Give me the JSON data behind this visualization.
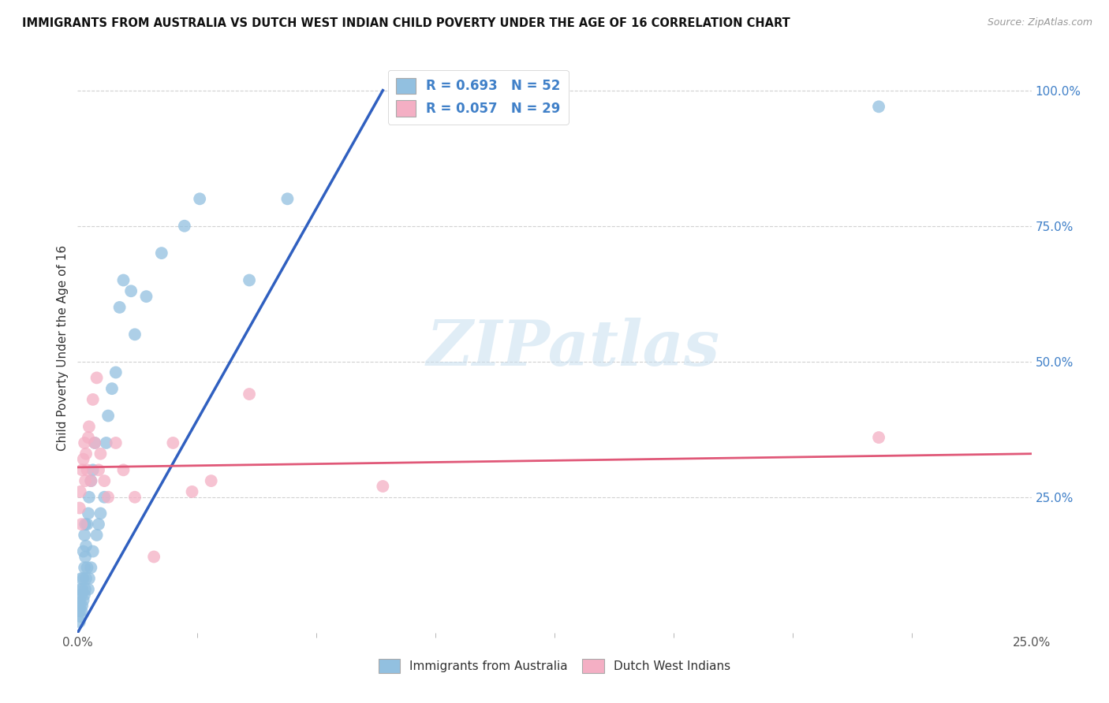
{
  "title": "IMMIGRANTS FROM AUSTRALIA VS DUTCH WEST INDIAN CHILD POVERTY UNDER THE AGE OF 16 CORRELATION CHART",
  "source": "Source: ZipAtlas.com",
  "ylabel": "Child Poverty Under the Age of 16",
  "watermark_text": "ZIPatlas",
  "legend_label_blue": "Immigrants from Australia",
  "legend_label_pink": "Dutch West Indians",
  "legend_r_blue": "R = 0.693   N = 52",
  "legend_r_pink": "R = 0.057   N = 29",
  "blue_scatter_color": "#92c0e0",
  "pink_scatter_color": "#f4afc4",
  "line_blue_color": "#3060c0",
  "line_pink_color": "#e05878",
  "background_color": "#ffffff",
  "grid_color": "#cccccc",
  "xlim": [
    0.0,
    25.0
  ],
  "ylim": [
    0.0,
    105.0
  ],
  "xticks": [
    0.0,
    25.0
  ],
  "yticks_right": [
    25.0,
    50.0,
    75.0,
    100.0
  ],
  "ytick_labels_right": [
    "25.0%",
    "50.0%",
    "75.0%",
    "100.0%"
  ],
  "blue_points_x": [
    0.05,
    0.05,
    0.05,
    0.07,
    0.07,
    0.07,
    0.1,
    0.1,
    0.1,
    0.12,
    0.12,
    0.15,
    0.15,
    0.15,
    0.18,
    0.18,
    0.18,
    0.2,
    0.2,
    0.2,
    0.22,
    0.22,
    0.25,
    0.25,
    0.28,
    0.28,
    0.3,
    0.3,
    0.35,
    0.35,
    0.4,
    0.4,
    0.45,
    0.5,
    0.55,
    0.6,
    0.7,
    0.75,
    0.8,
    0.9,
    1.0,
    1.1,
    1.2,
    1.4,
    1.5,
    1.8,
    2.2,
    2.8,
    3.2,
    4.5,
    5.5,
    21.0
  ],
  "blue_points_y": [
    2.0,
    4.0,
    6.0,
    3.0,
    5.0,
    8.0,
    4.0,
    7.0,
    10.0,
    5.0,
    8.0,
    6.0,
    10.0,
    15.0,
    7.0,
    12.0,
    18.0,
    8.0,
    14.0,
    20.0,
    10.0,
    16.0,
    12.0,
    20.0,
    8.0,
    22.0,
    10.0,
    25.0,
    12.0,
    28.0,
    15.0,
    30.0,
    35.0,
    18.0,
    20.0,
    22.0,
    25.0,
    35.0,
    40.0,
    45.0,
    48.0,
    60.0,
    65.0,
    63.0,
    55.0,
    62.0,
    70.0,
    75.0,
    80.0,
    65.0,
    80.0,
    97.0
  ],
  "pink_points_x": [
    0.05,
    0.07,
    0.1,
    0.12,
    0.15,
    0.18,
    0.2,
    0.22,
    0.25,
    0.28,
    0.3,
    0.35,
    0.4,
    0.45,
    0.5,
    0.55,
    0.6,
    0.7,
    0.8,
    1.0,
    1.2,
    1.5,
    2.0,
    2.5,
    3.0,
    3.5,
    4.5,
    8.0,
    21.0
  ],
  "pink_points_y": [
    23.0,
    26.0,
    20.0,
    30.0,
    32.0,
    35.0,
    28.0,
    33.0,
    30.0,
    36.0,
    38.0,
    28.0,
    43.0,
    35.0,
    47.0,
    30.0,
    33.0,
    28.0,
    25.0,
    35.0,
    30.0,
    25.0,
    14.0,
    35.0,
    26.0,
    28.0,
    44.0,
    27.0,
    36.0
  ],
  "blue_line_x0": 0.0,
  "blue_line_y0": 0.0,
  "blue_line_x1": 8.0,
  "blue_line_y1": 100.0,
  "pink_line_x0": 0.0,
  "pink_line_y0": 30.5,
  "pink_line_x1": 25.0,
  "pink_line_y1": 33.0
}
